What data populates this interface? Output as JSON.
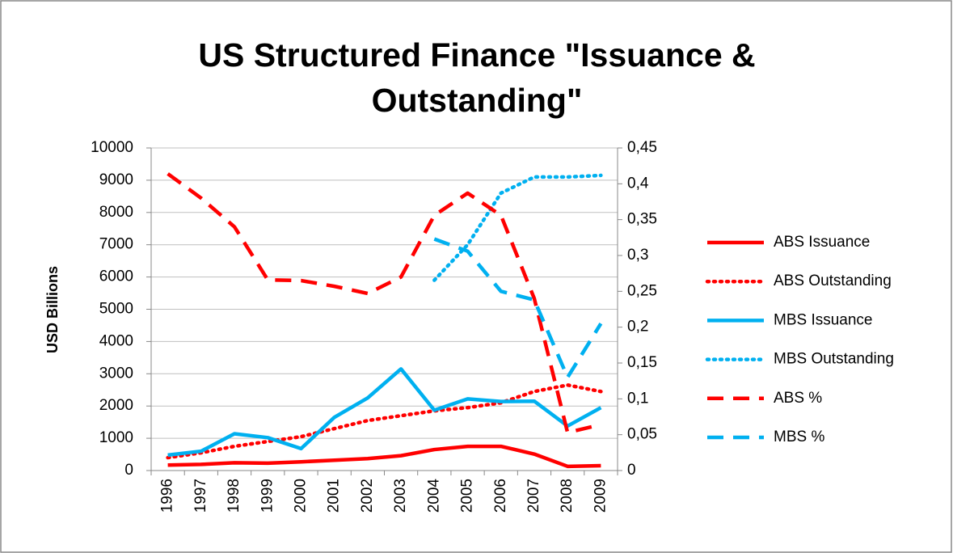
{
  "chart_data": {
    "type": "line",
    "title": "US Structured Finance \"Issuance & Outstanding\"",
    "y_label": "USD Billions",
    "categories": [
      "1996",
      "1997",
      "1998",
      "1999",
      "2000",
      "2001",
      "2002",
      "2003",
      "2004",
      "2005",
      "2006",
      "2007",
      "2008",
      "2009"
    ],
    "series": [
      {
        "name": "ABS Issuance",
        "color": "#ff0000",
        "style": "solid",
        "values": [
          170,
          190,
          240,
          230,
          270,
          320,
          370,
          460,
          650,
          750,
          750,
          510,
          130,
          150
        ]
      },
      {
        "name": "ABS Outstanding",
        "color": "#ff0000",
        "style": "dotted",
        "values": [
          400,
          550,
          750,
          900,
          1050,
          1300,
          1550,
          1700,
          1850,
          1950,
          2100,
          2450,
          2650,
          2450
        ]
      },
      {
        "name": "MBS Issuance",
        "color": "#00b0f0",
        "style": "solid",
        "values": [
          480,
          600,
          1140,
          1020,
          680,
          1650,
          2250,
          3150,
          1870,
          2220,
          2140,
          2150,
          1380,
          1950
        ]
      },
      {
        "name": "MBS Outstanding",
        "color": "#00b0f0",
        "style": "dotted",
        "values": [
          null,
          null,
          null,
          null,
          null,
          null,
          null,
          null,
          5900,
          7000,
          8600,
          9100,
          9100,
          9150
        ]
      },
      {
        "name": "ABS %",
        "color": "#ff0000",
        "style": "dashed",
        "axis": "y2",
        "values": [
          0.414,
          0.38,
          0.34,
          0.266,
          0.265,
          0.257,
          0.247,
          0.27,
          0.356,
          0.387,
          0.356,
          0.24,
          0.053,
          0.064
        ]
      },
      {
        "name": "MBS %",
        "color": "#00b0f0",
        "style": "dashed",
        "axis": "y2",
        "values": [
          null,
          null,
          null,
          null,
          null,
          null,
          null,
          null,
          0.323,
          0.306,
          0.25,
          0.238,
          0.13,
          0.205
        ]
      }
    ],
    "ylim": [
      0,
      10000
    ],
    "yticks": [
      0,
      1000,
      2000,
      3000,
      4000,
      5000,
      6000,
      7000,
      8000,
      9000,
      10000
    ],
    "y2lim": [
      0,
      0.45
    ],
    "y2ticks": [
      0,
      {
        "value": 0.05,
        "label": "0,05"
      },
      {
        "value": 0.1,
        "label": "0,1"
      },
      {
        "value": 0.15,
        "label": "0,15"
      },
      {
        "value": 0.2,
        "label": "0,2"
      },
      {
        "value": 0.25,
        "label": "0,25"
      },
      {
        "value": 0.3,
        "label": "0,3"
      },
      {
        "value": 0.35,
        "label": "0,35"
      },
      {
        "value": 0.4,
        "label": "0,4"
      },
      {
        "value": 0.45,
        "label": "0,45"
      }
    ],
    "grid": true,
    "legend": "right"
  }
}
